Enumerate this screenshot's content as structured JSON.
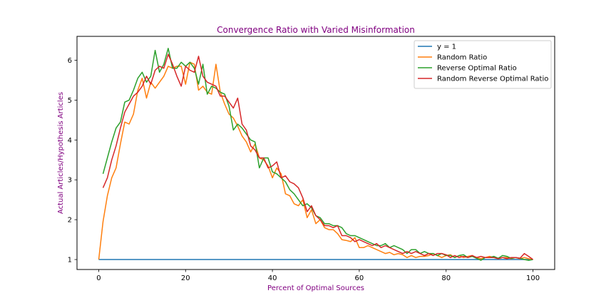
{
  "chart_data": {
    "type": "line",
    "title": "Convergence Ratio with Varied Misinformation",
    "xlabel": "Percent of Optimal Sources",
    "ylabel": "Actual Articles/Hypothesis Articles",
    "label_color": "#800080",
    "xlim": [
      -5,
      105
    ],
    "ylim": [
      0.75,
      6.6
    ],
    "xticks": [
      0,
      20,
      40,
      60,
      80,
      100
    ],
    "yticks": [
      1,
      2,
      3,
      4,
      5,
      6
    ],
    "grid": false,
    "legend_position": "top-right",
    "series": [
      {
        "name": "y = 1",
        "color": "#1f77b4",
        "points": [
          [
            0,
            1
          ],
          [
            100,
            1
          ]
        ]
      },
      {
        "name": "Random Ratio",
        "color": "#ff7f0e",
        "points": [
          [
            0,
            1.0
          ],
          [
            1,
            1.95
          ],
          [
            2,
            2.6
          ],
          [
            3,
            3.05
          ],
          [
            4,
            3.3
          ],
          [
            5,
            3.9
          ],
          [
            6,
            4.45
          ],
          [
            7,
            4.4
          ],
          [
            8,
            4.65
          ],
          [
            9,
            5.25
          ],
          [
            10,
            5.55
          ],
          [
            11,
            5.05
          ],
          [
            12,
            5.45
          ],
          [
            13,
            5.3
          ],
          [
            14,
            5.45
          ],
          [
            15,
            5.6
          ],
          [
            16,
            5.85
          ],
          [
            17,
            5.8
          ],
          [
            18,
            5.85
          ],
          [
            19,
            5.85
          ],
          [
            20,
            5.4
          ],
          [
            21,
            5.95
          ],
          [
            22,
            5.9
          ],
          [
            23,
            5.25
          ],
          [
            24,
            5.35
          ],
          [
            25,
            5.2
          ],
          [
            26,
            5.15
          ],
          [
            27,
            5.9
          ],
          [
            28,
            5.2
          ],
          [
            29,
            4.9
          ],
          [
            30,
            4.65
          ],
          [
            31,
            4.55
          ],
          [
            32,
            4.35
          ],
          [
            33,
            4.1
          ],
          [
            34,
            3.95
          ],
          [
            35,
            3.7
          ],
          [
            36,
            3.9
          ],
          [
            37,
            3.55
          ],
          [
            38,
            3.5
          ],
          [
            39,
            3.35
          ],
          [
            40,
            3.05
          ],
          [
            41,
            3.3
          ],
          [
            42,
            3.15
          ],
          [
            43,
            2.65
          ],
          [
            44,
            2.6
          ],
          [
            45,
            2.4
          ],
          [
            46,
            2.35
          ],
          [
            47,
            2.5
          ],
          [
            48,
            2.05
          ],
          [
            49,
            2.25
          ],
          [
            50,
            1.9
          ],
          [
            51,
            2.0
          ],
          [
            52,
            1.8
          ],
          [
            53,
            1.75
          ],
          [
            54,
            1.75
          ],
          [
            55,
            1.65
          ],
          [
            56,
            1.5
          ],
          [
            57,
            1.48
          ],
          [
            58,
            1.45
          ],
          [
            59,
            1.55
          ],
          [
            60,
            1.3
          ],
          [
            61,
            1.3
          ],
          [
            62,
            1.35
          ],
          [
            63,
            1.3
          ],
          [
            64,
            1.25
          ],
          [
            65,
            1.2
          ],
          [
            66,
            1.15
          ],
          [
            67,
            1.18
          ],
          [
            68,
            1.12
          ],
          [
            69,
            1.15
          ],
          [
            70,
            1.12
          ],
          [
            71,
            1.05
          ],
          [
            72,
            1.1
          ],
          [
            73,
            1.05
          ],
          [
            74,
            1.08
          ],
          [
            75,
            1.08
          ],
          [
            76,
            1.1
          ],
          [
            77,
            1.15
          ],
          [
            78,
            1.1
          ],
          [
            79,
            1.05
          ],
          [
            80,
            1.1
          ],
          [
            81,
            1.12
          ],
          [
            82,
            1.05
          ],
          [
            83,
            1.1
          ],
          [
            84,
            1.05
          ],
          [
            85,
            1.08
          ],
          [
            86,
            1.1
          ],
          [
            87,
            1.05
          ],
          [
            88,
            1.02
          ],
          [
            89,
            1.05
          ],
          [
            90,
            1.08
          ],
          [
            91,
            1.05
          ],
          [
            92,
            1.02
          ],
          [
            93,
            1.05
          ],
          [
            94,
            1.05
          ],
          [
            95,
            1.02
          ],
          [
            96,
            1.05
          ],
          [
            97,
            1.02
          ],
          [
            98,
            1.05
          ],
          [
            99,
            1.02
          ],
          [
            100,
            1.0
          ]
        ]
      },
      {
        "name": "Reverse Optimal Ratio",
        "color": "#2ca02c",
        "points": [
          [
            1,
            3.15
          ],
          [
            2,
            3.55
          ],
          [
            3,
            3.95
          ],
          [
            4,
            4.3
          ],
          [
            5,
            4.45
          ],
          [
            6,
            4.95
          ],
          [
            7,
            5.0
          ],
          [
            8,
            5.25
          ],
          [
            9,
            5.55
          ],
          [
            10,
            5.7
          ],
          [
            11,
            5.45
          ],
          [
            12,
            5.6
          ],
          [
            13,
            6.25
          ],
          [
            14,
            5.7
          ],
          [
            15,
            5.9
          ],
          [
            16,
            6.3
          ],
          [
            17,
            5.8
          ],
          [
            18,
            5.8
          ],
          [
            19,
            5.95
          ],
          [
            20,
            5.85
          ],
          [
            21,
            5.95
          ],
          [
            22,
            5.8
          ],
          [
            23,
            5.4
          ],
          [
            24,
            5.9
          ],
          [
            25,
            5.15
          ],
          [
            26,
            5.35
          ],
          [
            27,
            5.3
          ],
          [
            28,
            5.2
          ],
          [
            29,
            5.15
          ],
          [
            30,
            4.85
          ],
          [
            31,
            4.25
          ],
          [
            32,
            4.4
          ],
          [
            33,
            4.3
          ],
          [
            34,
            4.15
          ],
          [
            35,
            4.0
          ],
          [
            36,
            3.95
          ],
          [
            37,
            3.3
          ],
          [
            38,
            3.55
          ],
          [
            39,
            3.55
          ],
          [
            40,
            3.2
          ],
          [
            41,
            3.15
          ],
          [
            42,
            3.05
          ],
          [
            43,
            2.95
          ],
          [
            44,
            2.75
          ],
          [
            45,
            2.65
          ],
          [
            46,
            2.5
          ],
          [
            47,
            2.35
          ],
          [
            48,
            2.4
          ],
          [
            49,
            2.3
          ],
          [
            50,
            2.1
          ],
          [
            51,
            2.05
          ],
          [
            52,
            1.9
          ],
          [
            53,
            1.9
          ],
          [
            54,
            1.85
          ],
          [
            55,
            1.85
          ],
          [
            56,
            1.8
          ],
          [
            57,
            1.65
          ],
          [
            58,
            1.6
          ],
          [
            59,
            1.6
          ],
          [
            60,
            1.55
          ],
          [
            61,
            1.5
          ],
          [
            62,
            1.45
          ],
          [
            63,
            1.4
          ],
          [
            64,
            1.35
          ],
          [
            65,
            1.35
          ],
          [
            66,
            1.4
          ],
          [
            67,
            1.3
          ],
          [
            68,
            1.35
          ],
          [
            69,
            1.3
          ],
          [
            70,
            1.25
          ],
          [
            71,
            1.15
          ],
          [
            72,
            1.25
          ],
          [
            73,
            1.25
          ],
          [
            74,
            1.15
          ],
          [
            75,
            1.2
          ],
          [
            76,
            1.15
          ],
          [
            77,
            1.15
          ],
          [
            78,
            1.1
          ],
          [
            79,
            1.15
          ],
          [
            80,
            1.1
          ],
          [
            81,
            1.1
          ],
          [
            82,
            1.05
          ],
          [
            83,
            1.1
          ],
          [
            84,
            1.12
          ],
          [
            85,
            1.05
          ],
          [
            86,
            1.08
          ],
          [
            87,
            1.03
          ],
          [
            88,
            0.98
          ],
          [
            89,
            1.05
          ],
          [
            90,
            1.05
          ],
          [
            91,
            1.08
          ],
          [
            92,
            1.03
          ],
          [
            93,
            1.1
          ],
          [
            94,
            1.08
          ],
          [
            95,
            1.03
          ],
          [
            96,
            1.05
          ],
          [
            97,
            1.03
          ],
          [
            98,
            1.0
          ],
          [
            99,
            0.98
          ],
          [
            100,
            1.0
          ]
        ]
      },
      {
        "name": "Random Reverse Optimal Ratio",
        "color": "#d62728",
        "points": [
          [
            1,
            2.8
          ],
          [
            2,
            3.05
          ],
          [
            3,
            3.5
          ],
          [
            4,
            3.85
          ],
          [
            5,
            4.3
          ],
          [
            6,
            4.7
          ],
          [
            7,
            4.9
          ],
          [
            8,
            5.1
          ],
          [
            9,
            5.2
          ],
          [
            10,
            5.35
          ],
          [
            11,
            5.6
          ],
          [
            12,
            5.4
          ],
          [
            13,
            5.75
          ],
          [
            14,
            5.85
          ],
          [
            15,
            5.8
          ],
          [
            16,
            6.15
          ],
          [
            17,
            5.9
          ],
          [
            18,
            5.6
          ],
          [
            19,
            5.35
          ],
          [
            20,
            5.85
          ],
          [
            21,
            5.75
          ],
          [
            22,
            5.7
          ],
          [
            23,
            6.1
          ],
          [
            24,
            5.6
          ],
          [
            25,
            5.45
          ],
          [
            26,
            5.4
          ],
          [
            27,
            5.35
          ],
          [
            28,
            5.1
          ],
          [
            29,
            5.1
          ],
          [
            30,
            4.95
          ],
          [
            31,
            4.8
          ],
          [
            32,
            5.05
          ],
          [
            33,
            4.4
          ],
          [
            34,
            4.25
          ],
          [
            35,
            3.85
          ],
          [
            36,
            3.75
          ],
          [
            37,
            3.55
          ],
          [
            38,
            3.55
          ],
          [
            39,
            3.3
          ],
          [
            40,
            3.35
          ],
          [
            41,
            3.45
          ],
          [
            42,
            3.05
          ],
          [
            43,
            3.1
          ],
          [
            44,
            2.95
          ],
          [
            45,
            2.9
          ],
          [
            46,
            2.8
          ],
          [
            47,
            2.55
          ],
          [
            48,
            2.2
          ],
          [
            49,
            2.35
          ],
          [
            50,
            2.1
          ],
          [
            51,
            2.0
          ],
          [
            52,
            1.85
          ],
          [
            53,
            1.85
          ],
          [
            54,
            1.8
          ],
          [
            55,
            1.85
          ],
          [
            56,
            1.6
          ],
          [
            57,
            1.6
          ],
          [
            58,
            1.55
          ],
          [
            59,
            1.45
          ],
          [
            60,
            1.5
          ],
          [
            61,
            1.45
          ],
          [
            62,
            1.4
          ],
          [
            63,
            1.35
          ],
          [
            64,
            1.4
          ],
          [
            65,
            1.3
          ],
          [
            66,
            1.35
          ],
          [
            67,
            1.3
          ],
          [
            68,
            1.25
          ],
          [
            69,
            1.2
          ],
          [
            70,
            1.15
          ],
          [
            71,
            1.2
          ],
          [
            72,
            1.15
          ],
          [
            73,
            1.2
          ],
          [
            74,
            1.15
          ],
          [
            75,
            1.1
          ],
          [
            76,
            1.15
          ],
          [
            77,
            1.1
          ],
          [
            78,
            1.15
          ],
          [
            79,
            1.15
          ],
          [
            80,
            1.12
          ],
          [
            81,
            1.05
          ],
          [
            82,
            1.1
          ],
          [
            83,
            1.05
          ],
          [
            84,
            1.08
          ],
          [
            85,
            1.05
          ],
          [
            86,
            1.1
          ],
          [
            87,
            1.05
          ],
          [
            88,
            1.08
          ],
          [
            89,
            1.05
          ],
          [
            90,
            1.05
          ],
          [
            91,
            1.05
          ],
          [
            92,
            1.02
          ],
          [
            93,
            1.05
          ],
          [
            94,
            1.02
          ],
          [
            95,
            1.05
          ],
          [
            96,
            1.05
          ],
          [
            97,
            1.03
          ],
          [
            98,
            1.15
          ],
          [
            99,
            1.08
          ],
          [
            100,
            1.0
          ]
        ]
      }
    ]
  }
}
